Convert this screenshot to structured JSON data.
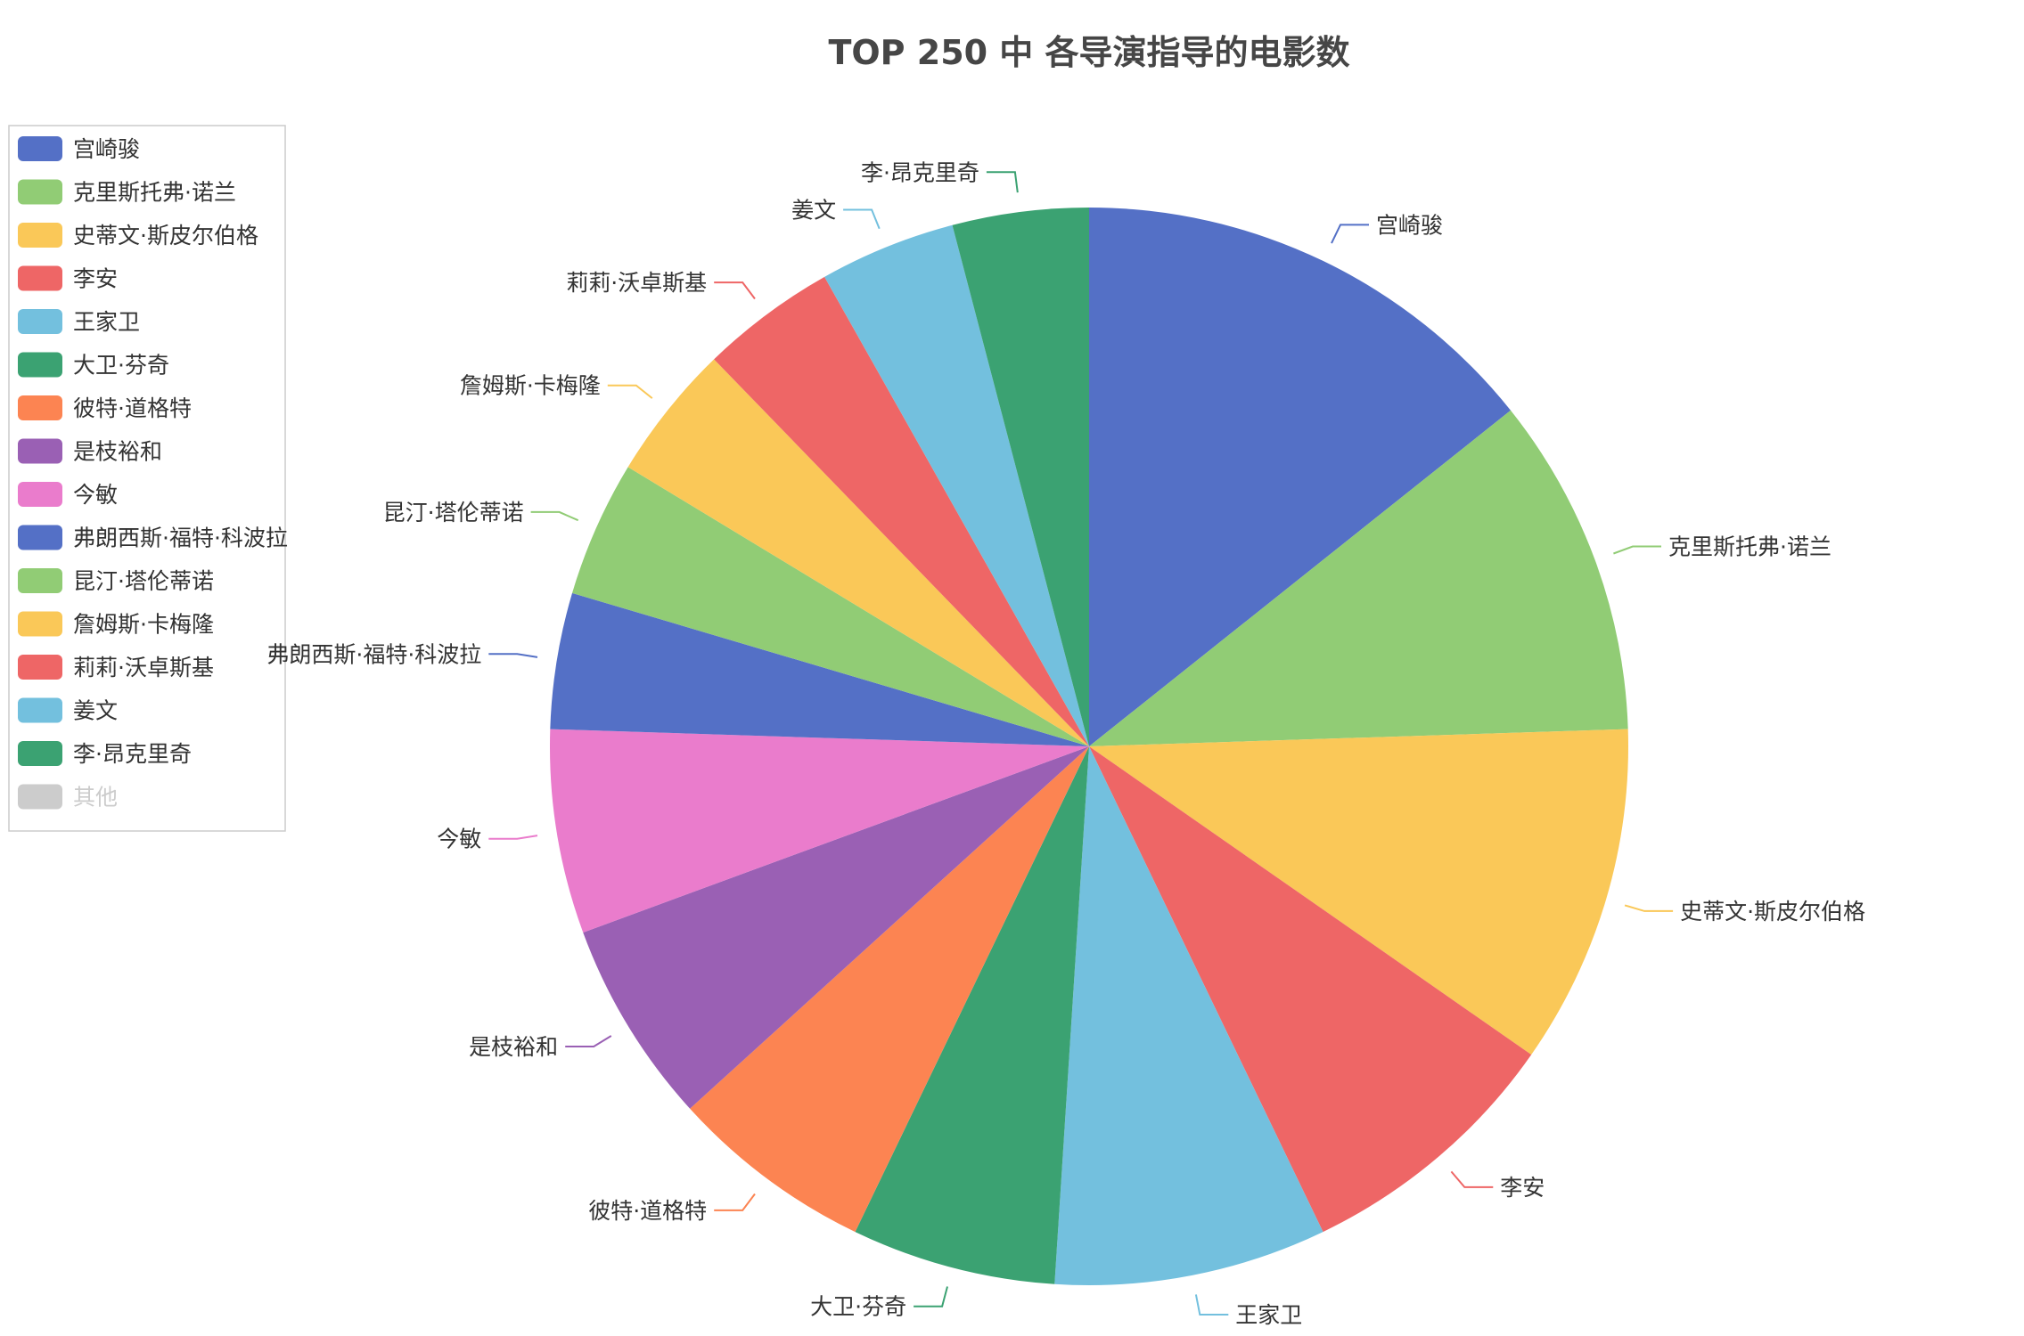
{
  "chart_data": {
    "type": "pie",
    "title": "TOP 250 中 各导演指导的电影数",
    "series": [
      {
        "slices": [
          {
            "name": "宫崎骏",
            "value": 7
          },
          {
            "name": "克里斯托弗·诺兰",
            "value": 5
          },
          {
            "name": "史蒂文·斯皮尔伯格",
            "value": 5
          },
          {
            "name": "李安",
            "value": 4
          },
          {
            "name": "王家卫",
            "value": 4
          },
          {
            "name": "大卫·芬奇",
            "value": 3
          },
          {
            "name": "彼特·道格特",
            "value": 3
          },
          {
            "name": "是枝裕和",
            "value": 3
          },
          {
            "name": "今敏",
            "value": 3
          },
          {
            "name": "弗朗西斯·福特·科波拉",
            "value": 2
          },
          {
            "name": "昆汀·塔伦蒂诺",
            "value": 2
          },
          {
            "name": "詹姆斯·卡梅隆",
            "value": 2
          },
          {
            "name": "莉莉·沃卓斯基",
            "value": 2
          },
          {
            "name": "姜文",
            "value": 2
          },
          {
            "name": "李·昂克里奇",
            "value": 2
          }
        ]
      }
    ],
    "legend": {
      "position": "top-left",
      "items": [
        {
          "name": "宫崎骏",
          "color": "#5470c6",
          "active": true
        },
        {
          "name": "克里斯托弗·诺兰",
          "color": "#91cc75",
          "active": true
        },
        {
          "name": "史蒂文·斯皮尔伯格",
          "color": "#fac858",
          "active": true
        },
        {
          "name": "李安",
          "color": "#ee6666",
          "active": true
        },
        {
          "name": "王家卫",
          "color": "#73c0de",
          "active": true
        },
        {
          "name": "大卫·芬奇",
          "color": "#3ba272",
          "active": true
        },
        {
          "name": "彼特·道格特",
          "color": "#fc8452",
          "active": true
        },
        {
          "name": "是枝裕和",
          "color": "#9a60b4",
          "active": true
        },
        {
          "name": "今敏",
          "color": "#ea7ccc",
          "active": true
        },
        {
          "name": "弗朗西斯·福特·科波拉",
          "color": "#5470c6",
          "active": true
        },
        {
          "name": "昆汀·塔伦蒂诺",
          "color": "#91cc75",
          "active": true
        },
        {
          "name": "詹姆斯·卡梅隆",
          "color": "#fac858",
          "active": true
        },
        {
          "name": "莉莉·沃卓斯基",
          "color": "#ee6666",
          "active": true
        },
        {
          "name": "姜文",
          "color": "#73c0de",
          "active": true
        },
        {
          "name": "李·昂克里奇",
          "color": "#3ba272",
          "active": true
        },
        {
          "name": "其他",
          "color": "#cccccc",
          "active": false
        }
      ]
    },
    "palette": [
      "#5470c6",
      "#91cc75",
      "#fac858",
      "#ee6666",
      "#73c0de",
      "#3ba272",
      "#fc8452",
      "#9a60b4",
      "#ea7ccc"
    ],
    "inactive_color": "#cccccc",
    "start_angle_deg": 90,
    "clockwise": true
  }
}
